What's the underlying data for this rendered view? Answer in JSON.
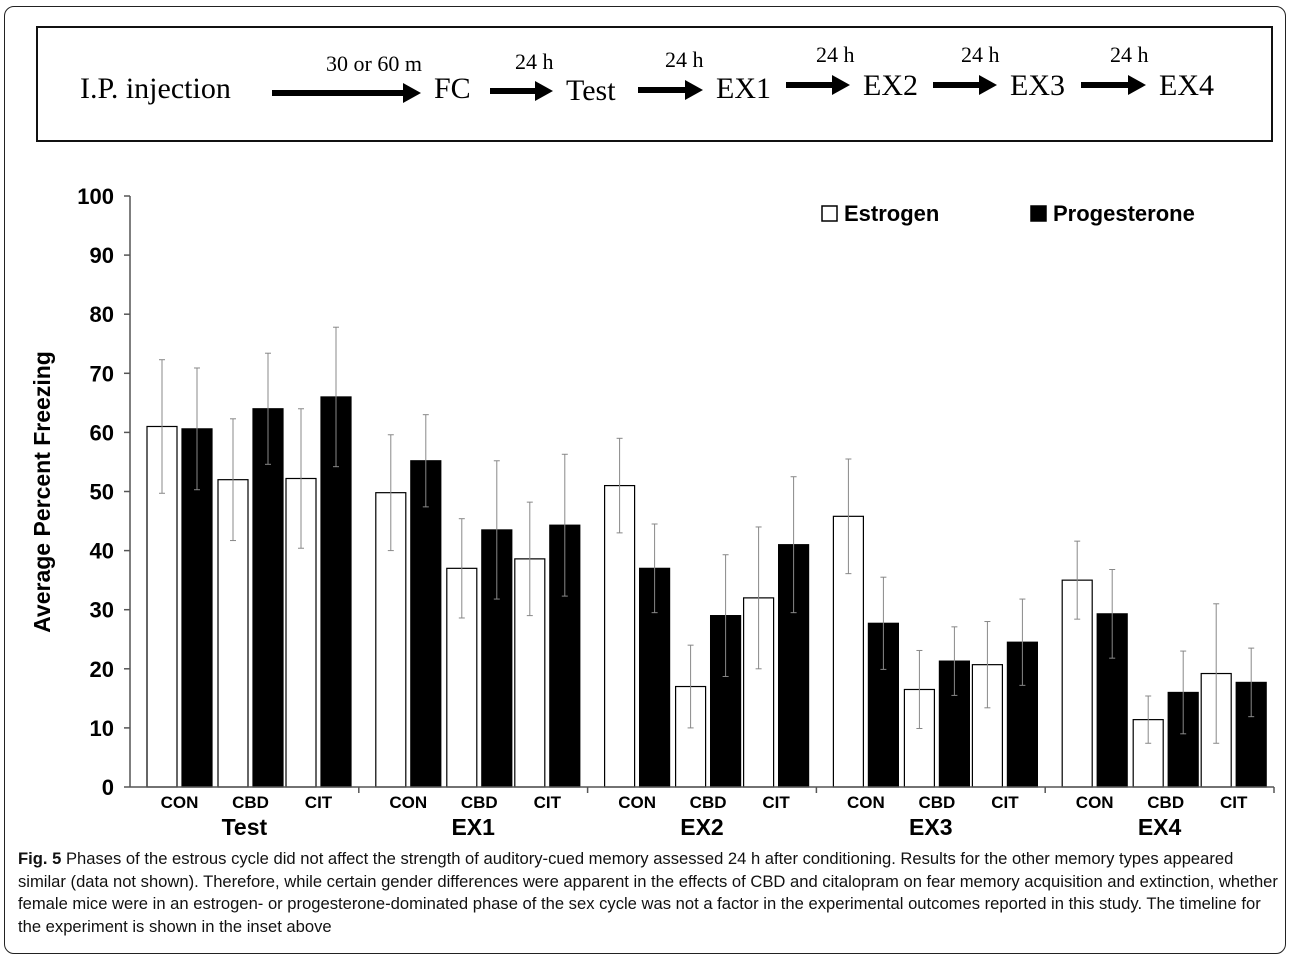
{
  "timeline": {
    "steps": [
      "I.P. injection",
      "FC",
      "Test",
      "EX1",
      "EX2",
      "EX3",
      "EX4"
    ],
    "intervals": [
      "30 or 60 m",
      "24 h",
      "24 h",
      "24 h",
      "24 h",
      "24 h"
    ]
  },
  "chart_data": {
    "type": "bar",
    "title": "",
    "xlabel": "",
    "ylabel": "Average Percent Freezing",
    "ylim": [
      0,
      100
    ],
    "yticks": [
      0,
      10,
      20,
      30,
      40,
      50,
      60,
      70,
      80,
      90,
      100
    ],
    "grid": false,
    "legend_position": "top-right",
    "groups": [
      {
        "label": "Test",
        "categories": [
          "CON",
          "CBD",
          "CIT"
        ]
      },
      {
        "label": "EX1",
        "categories": [
          "CON",
          "CBD",
          "CIT"
        ]
      },
      {
        "label": "EX2",
        "categories": [
          "CON",
          "CBD",
          "CIT"
        ]
      },
      {
        "label": "EX3",
        "categories": [
          "CON",
          "CBD",
          "CIT"
        ]
      },
      {
        "label": "EX4",
        "categories": [
          "CON",
          "CBD",
          "CIT"
        ]
      }
    ],
    "series": [
      {
        "name": "Estrogen",
        "fill": "#ffffff",
        "values": [
          61,
          52,
          52.2,
          49.8,
          37,
          38.6,
          51,
          17,
          32,
          45.8,
          16.5,
          20.7,
          35,
          11.4,
          19.2
        ],
        "errors": [
          11.3,
          10.3,
          11.8,
          9.8,
          8.4,
          9.6,
          8,
          7,
          12,
          9.7,
          6.6,
          7.3,
          6.6,
          4,
          11.8
        ]
      },
      {
        "name": "Progesterone",
        "fill": "#000000",
        "values": [
          60.6,
          64,
          66,
          55.2,
          43.5,
          44.3,
          37,
          29,
          41,
          27.7,
          21.3,
          24.5,
          29.3,
          16,
          17.7
        ],
        "errors": [
          10.3,
          9.4,
          11.8,
          7.8,
          11.7,
          12,
          7.5,
          10.3,
          11.5,
          7.8,
          5.8,
          7.3,
          7.5,
          7,
          5.8
        ]
      }
    ]
  },
  "caption": {
    "label": "Fig. 5",
    "text": " Phases of the estrous cycle did not affect the strength of auditory-cued memory assessed 24 h after conditioning. Results for the other memory types appeared similar (data not shown). Therefore, while certain gender differences were apparent in the effects of CBD and citalopram on fear memory acquisition and extinction, whether female mice were in an estrogen- or progesterone-dominated phase of the sex cycle was not a factor in the experimental outcomes reported in this study. The timeline for the experiment is shown in the inset above"
  }
}
